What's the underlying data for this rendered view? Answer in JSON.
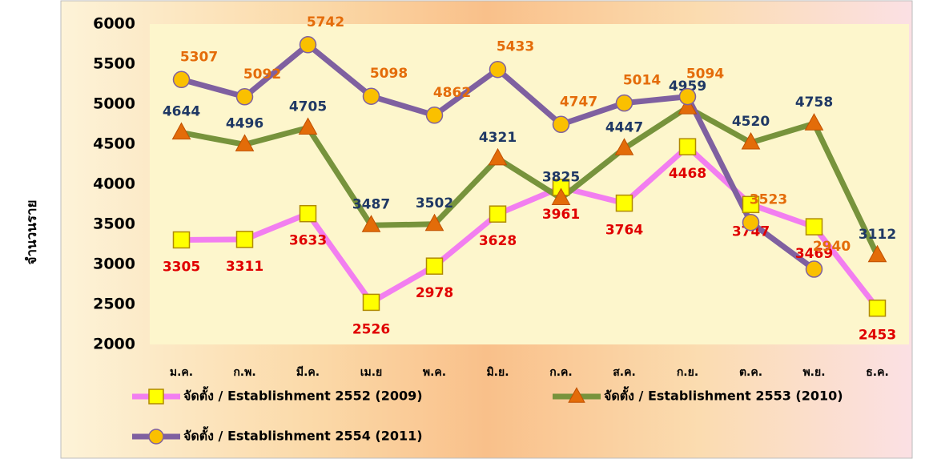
{
  "chart_data": {
    "type": "line",
    "y_label": "จำนวนราย",
    "categories": [
      "ม.ค.",
      "ก.พ.",
      "มี.ค.",
      "เม.ย",
      "พ.ค.",
      "มิ.ย.",
      "ก.ค.",
      "ส.ค.",
      "ก.ย.",
      "ต.ค.",
      "พ.ย.",
      "ธ.ค."
    ],
    "series": [
      {
        "name": "จัดตั้ง / Establishment 2552 (2009)",
        "color": "#f27ef0",
        "marker": "square",
        "marker_color": "#ffff00",
        "label_color": "#e00000",
        "values": [
          3305,
          3311,
          3633,
          2526,
          2978,
          3628,
          3961,
          3764,
          4468,
          3747,
          3469,
          2453
        ]
      },
      {
        "name": "จัดตั้ง / Establishment 2553 (2010)",
        "color": "#77933c",
        "marker": "triangle",
        "marker_color": "#e36c09",
        "label_color": "#1f3864",
        "values": [
          4644,
          4496,
          4705,
          3487,
          3502,
          4321,
          3825,
          4447,
          4959,
          4520,
          4758,
          3112
        ]
      },
      {
        "name": "จัดตั้ง / Establishment 2554 (2011)",
        "color": "#7f60a0",
        "marker": "circle",
        "marker_color": "#fac000",
        "label_color": "#e46c0a",
        "values": [
          5307,
          5092,
          5742,
          5098,
          4862,
          5433,
          4747,
          5014,
          5094,
          3523,
          2940,
          null
        ]
      }
    ],
    "ylim": [
      2000,
      6000
    ],
    "yticks": [
      2000,
      2500,
      3000,
      3500,
      4000,
      4500,
      5000,
      5500,
      6000
    ],
    "grid": false
  }
}
